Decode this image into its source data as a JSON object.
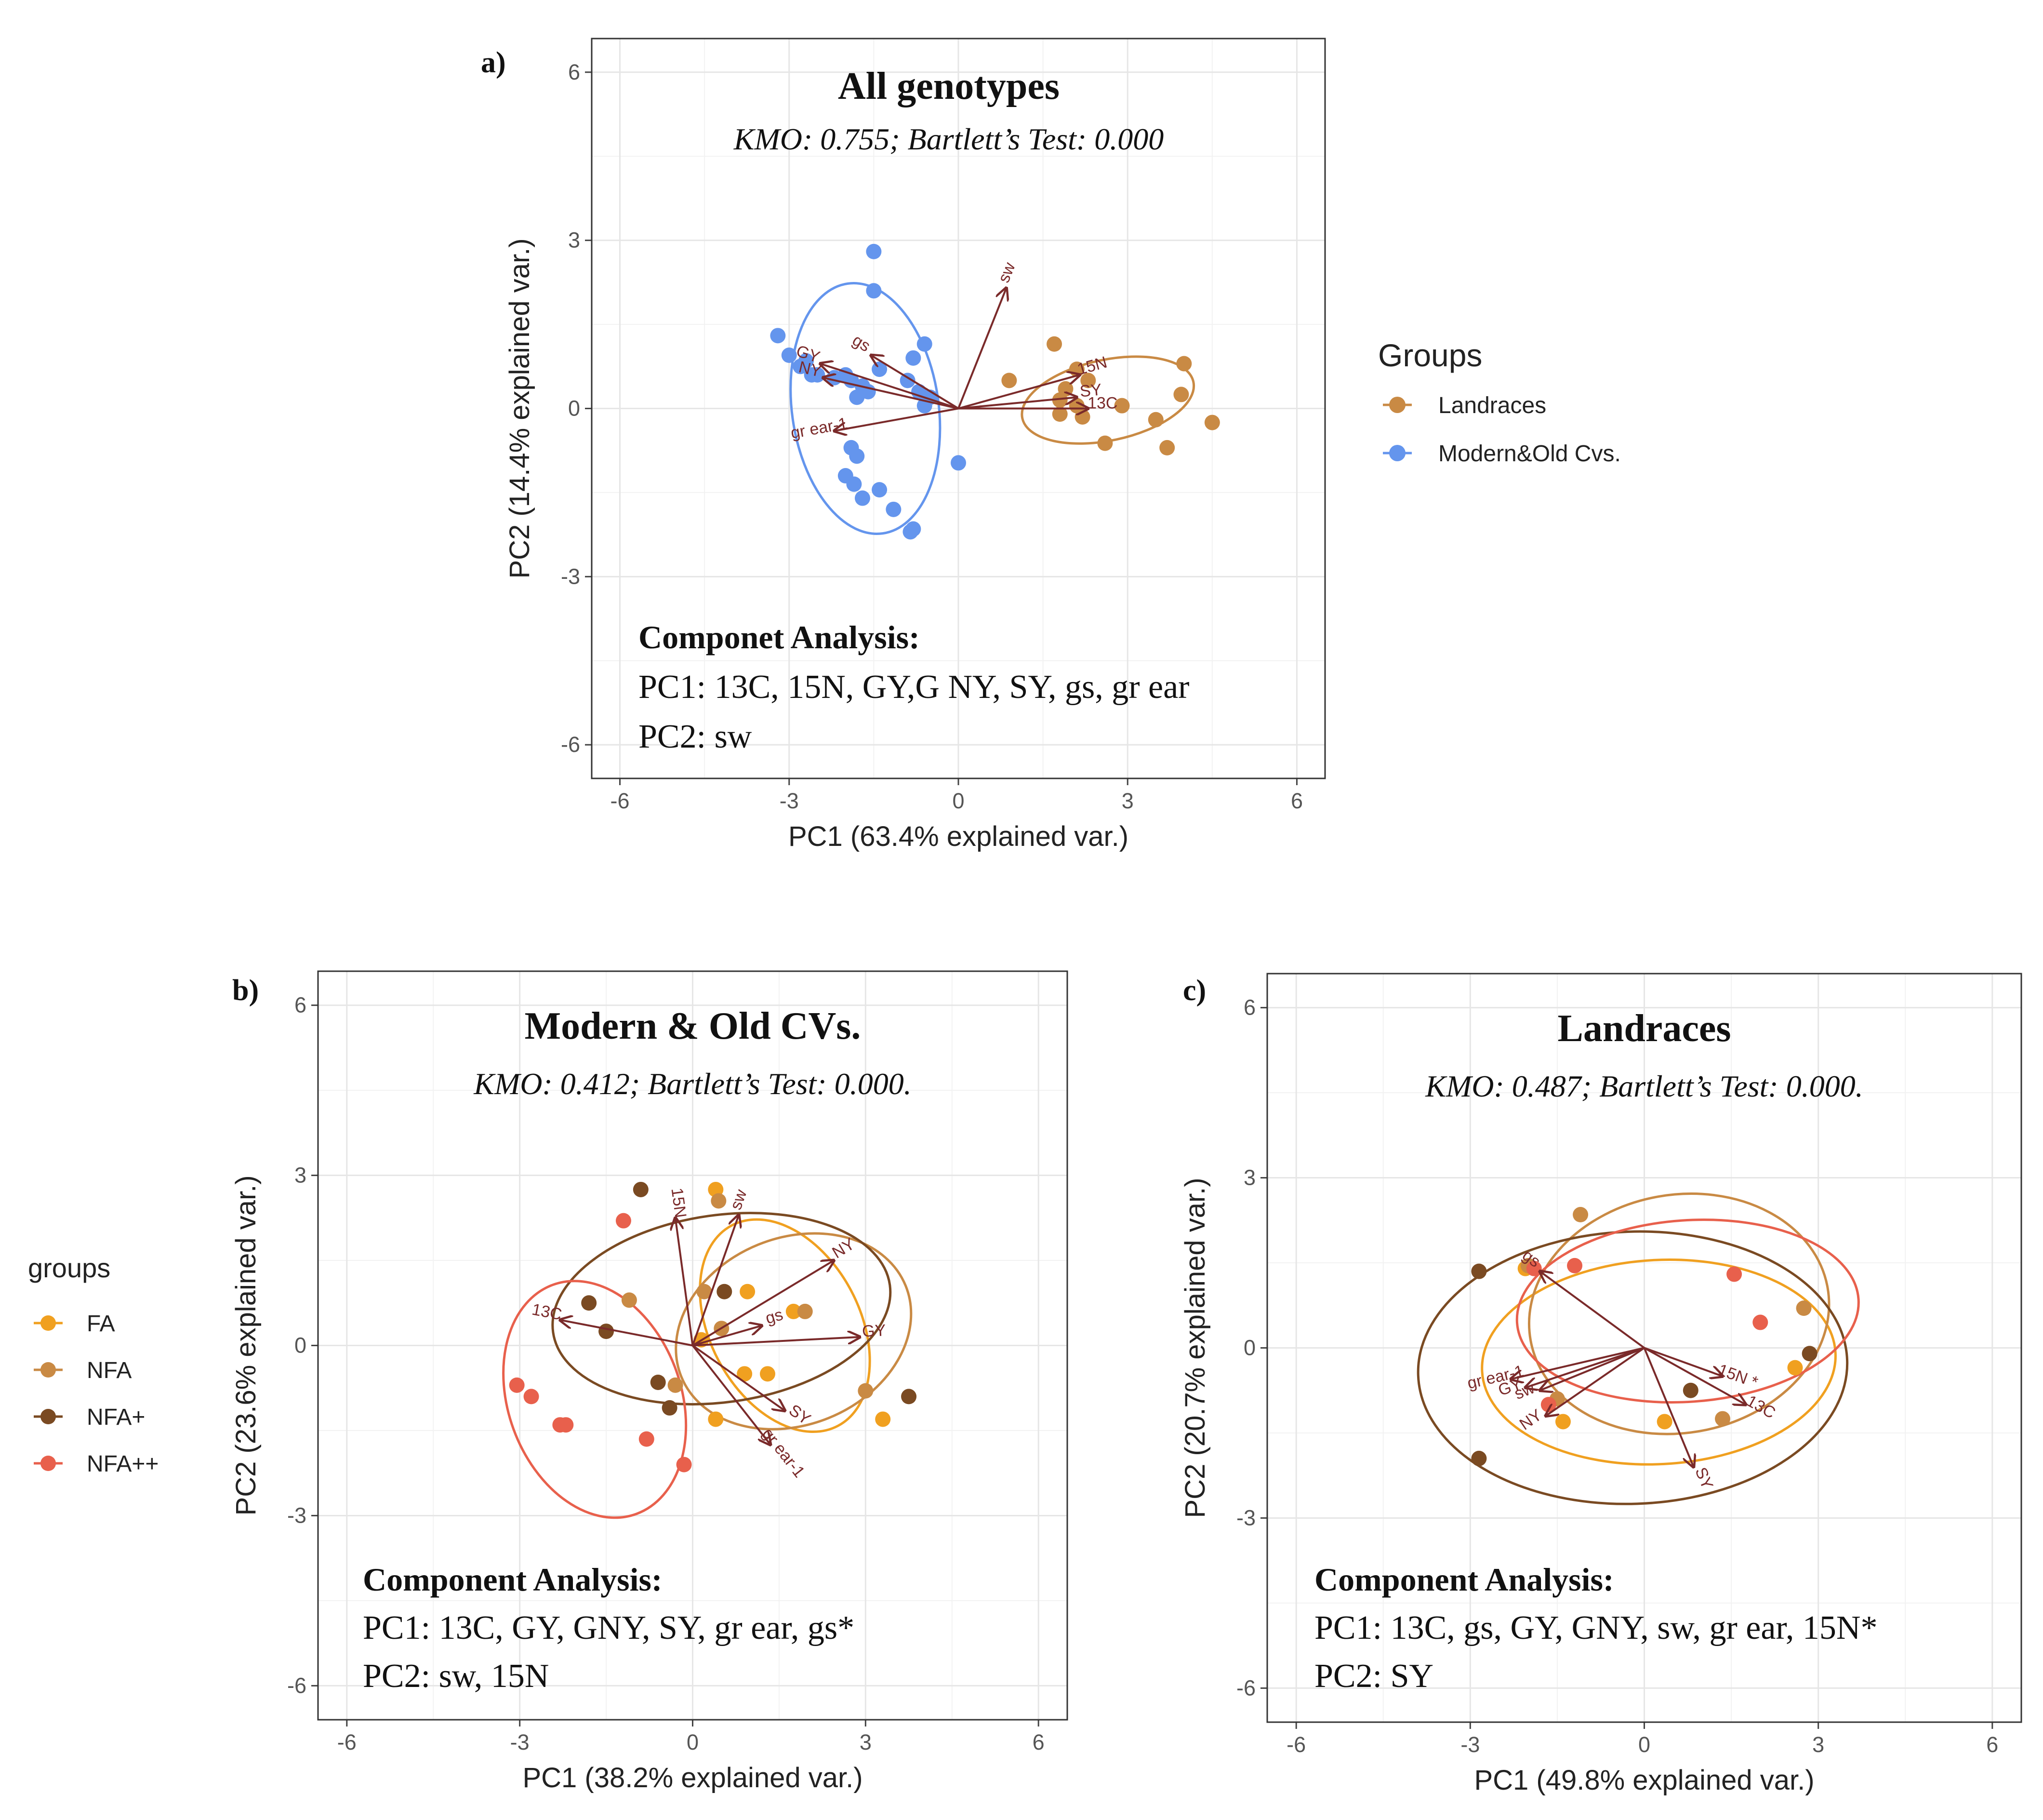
{
  "chart_data": [
    {
      "id": "a",
      "type": "scatter",
      "panel_letter": "a)",
      "title": "All genotypes",
      "subtitle": "KMO: 0.755; Bartlett’s Test: 0.000",
      "xlabel": "PC1 (63.4% explained var.)",
      "ylabel": "PC2 (14.4% explained var.)",
      "xlim": [
        -6.5,
        6.5
      ],
      "ylim": [
        -6.6,
        6.6
      ],
      "ticks": [
        -6,
        -3,
        0,
        3,
        6
      ],
      "tick_labels": [
        "-6",
        "-3",
        "0",
        "3",
        "6"
      ],
      "legend": {
        "title": "Groups",
        "position": "right"
      },
      "series": [
        {
          "name": "Landraces",
          "color": "#c98a44",
          "points": [
            [
              1.7,
              1.15
            ],
            [
              2.1,
              0.7
            ],
            [
              2.3,
              0.5
            ],
            [
              1.9,
              0.35
            ],
            [
              1.8,
              0.15
            ],
            [
              2.1,
              0.05
            ],
            [
              2.9,
              0.05
            ],
            [
              1.8,
              -0.1
            ],
            [
              0.9,
              0.5
            ],
            [
              4.0,
              0.8
            ],
            [
              3.95,
              0.25
            ],
            [
              3.5,
              -0.2
            ],
            [
              4.5,
              -0.25
            ],
            [
              3.7,
              -0.7
            ],
            [
              2.6,
              -0.62
            ],
            [
              2.2,
              -0.15
            ]
          ],
          "ellipse": {
            "cx": 2.65,
            "cy": 0.15,
            "rx": 1.55,
            "ry": 0.72,
            "angle_deg": -12
          }
        },
        {
          "name": "Modern&Old Cvs.",
          "color": "#6495ed",
          "points": [
            [
              -1.5,
              2.8
            ],
            [
              -1.5,
              2.1
            ],
            [
              -3.2,
              1.3
            ],
            [
              -3.0,
              0.95
            ],
            [
              -2.7,
              0.85
            ],
            [
              -2.8,
              0.75
            ],
            [
              -2.5,
              0.6
            ],
            [
              -2.2,
              0.55
            ],
            [
              -2.0,
              0.6
            ],
            [
              -1.9,
              0.5
            ],
            [
              -1.7,
              0.4
            ],
            [
              -1.6,
              0.3
            ],
            [
              -1.4,
              0.7
            ],
            [
              -0.6,
              1.15
            ],
            [
              -0.8,
              0.9
            ],
            [
              -0.9,
              0.5
            ],
            [
              -0.7,
              0.3
            ],
            [
              -0.5,
              0.2
            ],
            [
              -0.6,
              0.05
            ],
            [
              -1.8,
              0.2
            ],
            [
              -1.9,
              -0.7
            ],
            [
              -1.8,
              -0.85
            ],
            [
              -2.0,
              -1.2
            ],
            [
              -1.85,
              -1.35
            ],
            [
              -1.4,
              -1.45
            ],
            [
              -1.7,
              -1.6
            ],
            [
              -1.15,
              -1.8
            ],
            [
              -0.8,
              -2.15
            ],
            [
              -0.85,
              -2.2
            ],
            [
              0.0,
              -0.97
            ],
            [
              -2.6,
              0.6
            ]
          ],
          "ellipse": {
            "cx": -1.65,
            "cy": 0.0,
            "rx": 1.3,
            "ry": 2.25,
            "angle_deg": -8
          }
        }
      ],
      "loadings": [
        {
          "label": "sw",
          "x": 0.85,
          "y": 2.15
        },
        {
          "label": "gs",
          "x": -1.55,
          "y": 0.95
        },
        {
          "label": "GY",
          "x": -2.45,
          "y": 0.8
        },
        {
          "label": "NY",
          "x": -2.4,
          "y": 0.55
        },
        {
          "label": "15N",
          "x": 2.15,
          "y": 0.6
        },
        {
          "label": "SY",
          "x": 2.1,
          "y": 0.2
        },
        {
          "label": "13C",
          "x": 2.3,
          "y": 0.0
        },
        {
          "label": "gr ear-1",
          "x": -2.2,
          "y": -0.4
        }
      ],
      "annotation": {
        "heading": "Componet Analysis:",
        "lines": [
          "PC1: 13C, 15N, GY,G NY, SY, gs, gr ear",
          "PC2: sw"
        ]
      }
    },
    {
      "id": "b",
      "type": "scatter",
      "panel_letter": "b)",
      "title": "Modern & Old CVs.",
      "subtitle": "KMO: 0.412; Bartlett’s Test: 0.000.",
      "xlabel": "PC1 (38.2% explained var.)",
      "ylabel": "PC2 (23.6% explained var.)",
      "xlim": [
        -6.5,
        6.5
      ],
      "ylim": [
        -6.6,
        6.6
      ],
      "ticks": [
        -6,
        -3,
        0,
        3,
        6
      ],
      "tick_labels": [
        "-6",
        "-3",
        "0",
        "3",
        "6"
      ],
      "legend": {
        "title": "groups",
        "position": "left"
      },
      "series": [
        {
          "name": "FA",
          "color": "#f0a020",
          "points": [
            [
              0.4,
              2.75
            ],
            [
              0.95,
              0.95
            ],
            [
              1.75,
              0.6
            ],
            [
              0.15,
              0.1
            ],
            [
              0.9,
              -0.5
            ],
            [
              1.3,
              -0.5
            ],
            [
              0.4,
              -1.3
            ],
            [
              3.3,
              -1.3
            ]
          ],
          "ellipse": {
            "cx": 1.6,
            "cy": 0.35,
            "rx": 1.3,
            "ry": 2.0,
            "angle_deg": -28
          }
        },
        {
          "name": "NFA",
          "color": "#c98a44",
          "points": [
            [
              0.45,
              2.55
            ],
            [
              0.2,
              0.95
            ],
            [
              1.95,
              0.6
            ],
            [
              -1.1,
              0.8
            ],
            [
              0.5,
              0.3
            ],
            [
              -0.3,
              -0.7
            ],
            [
              3.0,
              -0.8
            ]
          ],
          "ellipse": {
            "cx": 1.75,
            "cy": 0.25,
            "rx": 2.1,
            "ry": 1.65,
            "angle_deg": -22
          }
        },
        {
          "name": "NFA+",
          "color": "#7a4a22",
          "points": [
            [
              -0.9,
              2.75
            ],
            [
              -1.8,
              0.75
            ],
            [
              -1.5,
              0.25
            ],
            [
              0.55,
              0.95
            ],
            [
              -0.6,
              -0.65
            ],
            [
              -0.4,
              -1.1
            ],
            [
              3.75,
              -0.9
            ]
          ],
          "ellipse": {
            "cx": 0.5,
            "cy": 0.65,
            "rx": 2.95,
            "ry": 1.65,
            "angle_deg": -8
          }
        },
        {
          "name": "NFA++",
          "color": "#e8604c",
          "points": [
            [
              -1.2,
              2.2
            ],
            [
              -3.05,
              -0.7
            ],
            [
              -2.8,
              -0.9
            ],
            [
              -2.3,
              -1.4
            ],
            [
              -2.2,
              -1.4
            ],
            [
              -0.8,
              -1.65
            ],
            [
              -0.15,
              -2.1
            ]
          ],
          "ellipse": {
            "cx": -1.7,
            "cy": -0.95,
            "rx": 1.5,
            "ry": 2.15,
            "angle_deg": -20
          }
        }
      ],
      "loadings": [
        {
          "label": "15N",
          "x": -0.3,
          "y": 2.25
        },
        {
          "label": "sw",
          "x": 0.8,
          "y": 2.3
        },
        {
          "label": "NY",
          "x": 2.45,
          "y": 1.5
        },
        {
          "label": "gs",
          "x": 1.2,
          "y": 0.35
        },
        {
          "label": "GY",
          "x": 2.9,
          "y": 0.15
        },
        {
          "label": "13C",
          "x": -2.3,
          "y": 0.45
        },
        {
          "label": "SY",
          "x": 1.6,
          "y": -1.15
        },
        {
          "label": "gr ear-1",
          "x": 1.35,
          "y": -1.75
        }
      ],
      "annotation": {
        "heading": "Component Analysis:",
        "lines": [
          "PC1: 13C, GY, GNY, SY, gr ear, gs*",
          "PC2: sw, 15N"
        ]
      }
    },
    {
      "id": "c",
      "type": "scatter",
      "panel_letter": "c)",
      "title": "Landraces",
      "subtitle": "KMO: 0.487; Bartlett’s Test: 0.000.",
      "xlabel": "PC1 (49.8% explained var.)",
      "ylabel": "PC2 (20.7% explained var.)",
      "xlim": [
        -6.5,
        6.5
      ],
      "ylim": [
        -6.6,
        6.6
      ],
      "ticks": [
        -6,
        -3,
        0,
        3,
        6
      ],
      "tick_labels": [
        "-6",
        "-3",
        "0",
        "3",
        "6"
      ],
      "series": [
        {
          "name": "FA",
          "color": "#f0a020",
          "points": [
            [
              -2.05,
              1.4
            ],
            [
              -1.4,
              -1.3
            ],
            [
              0.35,
              -1.3
            ],
            [
              2.6,
              -0.35
            ]
          ],
          "ellipse": {
            "cx": 0.25,
            "cy": -0.25,
            "rx": 3.05,
            "ry": 1.8,
            "angle_deg": -3
          }
        },
        {
          "name": "NFA",
          "color": "#c98a44",
          "points": [
            [
              -1.1,
              2.35
            ],
            [
              -2.0,
              1.45
            ],
            [
              -1.5,
              -0.9
            ],
            [
              1.35,
              -1.25
            ],
            [
              2.75,
              0.7
            ]
          ],
          "ellipse": {
            "cx": 0.6,
            "cy": 0.6,
            "rx": 2.6,
            "ry": 2.1,
            "angle_deg": -10
          }
        },
        {
          "name": "NFA+",
          "color": "#7a4a22",
          "points": [
            [
              -2.85,
              1.35
            ],
            [
              -2.85,
              -1.95
            ],
            [
              0.8,
              -0.75
            ],
            [
              2.85,
              -0.1
            ]
          ],
          "ellipse": {
            "cx": -0.2,
            "cy": -0.35,
            "rx": 3.7,
            "ry": 2.4,
            "angle_deg": -2
          }
        },
        {
          "name": "NFA++",
          "color": "#e8604c",
          "points": [
            [
              -1.9,
              1.4
            ],
            [
              -1.2,
              1.45
            ],
            [
              -1.65,
              -1.0
            ],
            [
              1.55,
              1.3
            ],
            [
              2.0,
              0.45
            ]
          ],
          "ellipse": {
            "cx": 0.75,
            "cy": 0.65,
            "rx": 2.95,
            "ry": 1.6,
            "angle_deg": -4
          }
        }
      ],
      "loadings": [
        {
          "label": "15N *",
          "x": 1.35,
          "y": -0.5
        },
        {
          "label": "13C",
          "x": 1.75,
          "y": -1.0
        },
        {
          "label": "SY",
          "x": 0.85,
          "y": -2.1
        },
        {
          "label": "gr ear-1",
          "x": -2.3,
          "y": -0.55
        },
        {
          "label": "GY",
          "x": -2.05,
          "y": -0.7
        },
        {
          "label": "sw",
          "x": -1.8,
          "y": -0.75
        },
        {
          "label": "NY",
          "x": -1.7,
          "y": -1.2
        },
        {
          "label": "gs",
          "x": -1.8,
          "y": 1.35
        }
      ],
      "annotation": {
        "heading": "Component Analysis:",
        "lines": [
          "PC1: 13C, gs, GY, GNY, sw, gr ear, 15N*",
          "PC2: SY"
        ]
      }
    }
  ]
}
